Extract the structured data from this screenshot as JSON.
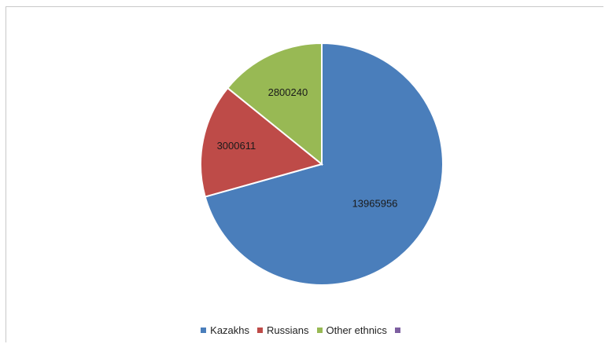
{
  "chart_data": {
    "type": "pie",
    "title": "",
    "series": [
      {
        "values": [
          13965956,
          3000611,
          2800240,
          0
        ]
      }
    ],
    "categories": [
      "Kazakhs",
      "Russians",
      "Other ethnics",
      ""
    ],
    "colors": [
      "#4a7ebb",
      "#be4b48",
      "#98b954",
      "#7d5fa0"
    ],
    "legend_position": "bottom",
    "data_labels": [
      "13965956",
      "3000611",
      "2800240",
      ""
    ]
  }
}
